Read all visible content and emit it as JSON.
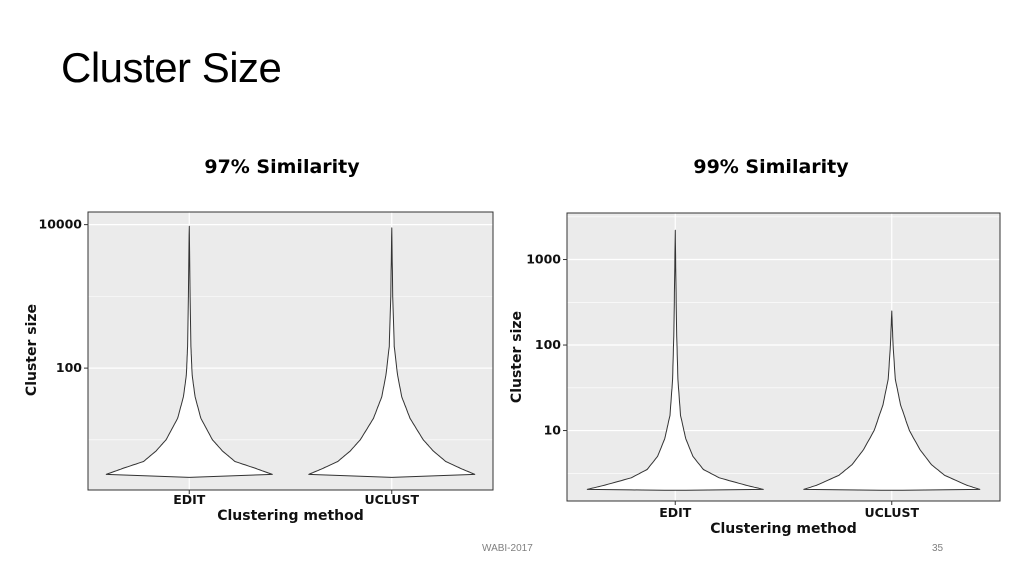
{
  "slide": {
    "title": "Cluster Size",
    "footer_left": "WABI-2017",
    "page_number": "35"
  },
  "colors": {
    "panel_bg": "#ebebeb",
    "grid": "#ffffff",
    "violin_fill": "#ffffff",
    "violin_stroke": "#333333"
  },
  "chart_data": [
    {
      "type": "violin",
      "title": "97% Similarity",
      "xlabel": "Clustering method",
      "ylabel": "Cluster size",
      "y_scale": "log10",
      "ylim": [
        2,
        15000
      ],
      "yticks": [
        100,
        10000
      ],
      "ytick_labels": [
        "100",
        "10000"
      ],
      "categories": [
        "EDIT",
        "UCLUST"
      ],
      "grid": true,
      "series": [
        {
          "category": "EDIT",
          "min": 3,
          "max": 9500,
          "profile": [
            [
              3,
              0.0
            ],
            [
              3.3,
              1.0
            ],
            [
              4,
              0.8
            ],
            [
              5,
              0.55
            ],
            [
              7,
              0.4
            ],
            [
              10,
              0.28
            ],
            [
              20,
              0.14
            ],
            [
              40,
              0.07
            ],
            [
              80,
              0.035
            ],
            [
              200,
              0.02
            ],
            [
              1000,
              0.01
            ],
            [
              9500,
              0.0
            ]
          ]
        },
        {
          "category": "UCLUST",
          "min": 3,
          "max": 9000,
          "profile": [
            [
              3,
              0.0
            ],
            [
              3.3,
              1.0
            ],
            [
              4,
              0.83
            ],
            [
              5,
              0.65
            ],
            [
              7,
              0.5
            ],
            [
              10,
              0.38
            ],
            [
              20,
              0.22
            ],
            [
              40,
              0.12
            ],
            [
              80,
              0.07
            ],
            [
              200,
              0.03
            ],
            [
              1000,
              0.012
            ],
            [
              9000,
              0.0
            ]
          ]
        }
      ]
    },
    {
      "type": "violin",
      "title": "99% Similarity",
      "xlabel": "Clustering method",
      "ylabel": "Cluster size",
      "y_scale": "log10",
      "ylim": [
        1.5,
        3500
      ],
      "yticks": [
        10,
        100,
        1000
      ],
      "ytick_labels": [
        "10",
        "100",
        "1000"
      ],
      "categories": [
        "EDIT",
        "UCLUST"
      ],
      "grid": true,
      "series": [
        {
          "category": "EDIT",
          "min": 2,
          "max": 2200,
          "profile": [
            [
              2,
              0.0
            ],
            [
              2.05,
              1.0
            ],
            [
              2.3,
              0.8
            ],
            [
              2.8,
              0.5
            ],
            [
              3.5,
              0.32
            ],
            [
              5,
              0.2
            ],
            [
              8,
              0.12
            ],
            [
              15,
              0.06
            ],
            [
              40,
              0.03
            ],
            [
              150,
              0.015
            ],
            [
              2200,
              0.0
            ]
          ]
        },
        {
          "category": "UCLUST",
          "min": 2,
          "max": 250,
          "profile": [
            [
              2,
              0.0
            ],
            [
              2.05,
              1.0
            ],
            [
              2.3,
              0.85
            ],
            [
              3,
              0.6
            ],
            [
              4,
              0.45
            ],
            [
              6,
              0.32
            ],
            [
              10,
              0.2
            ],
            [
              20,
              0.1
            ],
            [
              40,
              0.04
            ],
            [
              100,
              0.015
            ],
            [
              250,
              0.0
            ]
          ]
        }
      ]
    }
  ]
}
